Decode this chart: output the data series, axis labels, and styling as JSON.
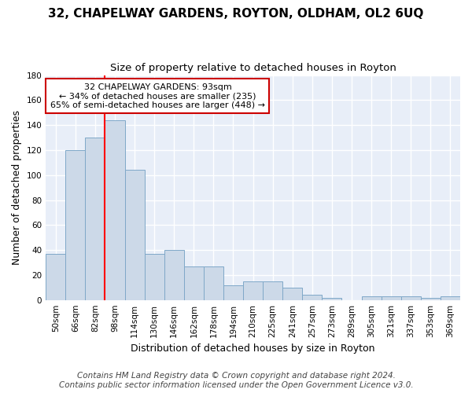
{
  "title": "32, CHAPELWAY GARDENS, ROYTON, OLDHAM, OL2 6UQ",
  "subtitle": "Size of property relative to detached houses in Royton",
  "xlabel": "Distribution of detached houses by size in Royton",
  "ylabel": "Number of detached properties",
  "categories": [
    "50sqm",
    "66sqm",
    "82sqm",
    "98sqm",
    "114sqm",
    "130sqm",
    "146sqm",
    "162sqm",
    "178sqm",
    "194sqm",
    "210sqm",
    "225sqm",
    "241sqm",
    "257sqm",
    "273sqm",
    "289sqm",
    "305sqm",
    "321sqm",
    "337sqm",
    "353sqm",
    "369sqm"
  ],
  "values": [
    37,
    120,
    130,
    144,
    104,
    37,
    40,
    27,
    27,
    12,
    15,
    15,
    10,
    4,
    2,
    0,
    3,
    3,
    3,
    2,
    3
  ],
  "bar_color": "#ccd9e8",
  "bar_edge_color": "#7fa8c8",
  "red_line_x": 2.5,
  "annotation_text": "32 CHAPELWAY GARDENS: 93sqm\n← 34% of detached houses are smaller (235)\n65% of semi-detached houses are larger (448) →",
  "annotation_box_color": "#ffffff",
  "annotation_box_edge": "#cc0000",
  "ylim": [
    0,
    180
  ],
  "yticks": [
    0,
    20,
    40,
    60,
    80,
    100,
    120,
    140,
    160,
    180
  ],
  "fig_bg_color": "#ffffff",
  "bg_color": "#e8eef8",
  "grid_color": "#ffffff",
  "title_fontsize": 11,
  "subtitle_fontsize": 9.5,
  "tick_fontsize": 7.5,
  "ylabel_fontsize": 9,
  "xlabel_fontsize": 9,
  "footer_fontsize": 7.5
}
